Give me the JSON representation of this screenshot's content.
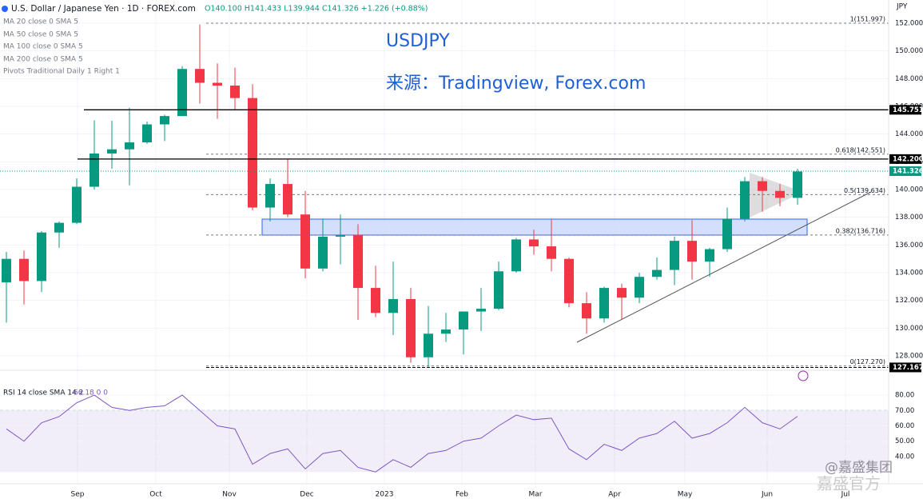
{
  "chart_data": {
    "type": "candlestick",
    "title": "U.S. Dollar / Japanese Yen · 1D · FOREX.com",
    "ohlc_readout": "O140.100 H141.433 L139.944 C141.326 +1.226 (+0.88%)",
    "indicators": [
      "MA 20 close 0 SMA 5",
      "MA 50 close 0 SMA 5",
      "MA 100 close 0 SMA 5",
      "MA 200 close 0 SMA 5",
      "Pivots Traditional Daily 1 Right 1"
    ],
    "annotations": [
      "USDJPY",
      "来源：Tradingview, Forex.com"
    ],
    "unit": "JPY",
    "up_color": "#089981",
    "down_color": "#f23645",
    "open": [
      133.3,
      135.0,
      133.4,
      136.9,
      137.6,
      140.2,
      142.6,
      142.9,
      143.4,
      144.7,
      145.3,
      148.7,
      147.7,
      147.5,
      146.6,
      138.7,
      140.4,
      138.2,
      134.3,
      136.6,
      136.7,
      132.9,
      131.1,
      132.1,
      127.9,
      129.6,
      129.9,
      131.2,
      131.4,
      134.1,
      136.4,
      135.9,
      135.0,
      131.8,
      130.7,
      132.9,
      132.2,
      133.7,
      134.2,
      136.3,
      134.8,
      135.7,
      137.9,
      140.6,
      139.9,
      139.4
    ],
    "high": [
      135.5,
      135.6,
      137.0,
      137.7,
      140.8,
      144.99,
      144.96,
      145.9,
      144.9,
      145.4,
      148.9,
      151.9,
      149.1,
      148.8,
      147.6,
      140.8,
      142.2,
      139.9,
      137.9,
      138.2,
      137.5,
      134.5,
      134.8,
      132.9,
      131.6,
      131.1,
      131.2,
      132.9,
      134.8,
      136.5,
      137.1,
      137.9,
      135.1,
      132.6,
      133.0,
      133.2,
      134.0,
      135.1,
      136.6,
      137.8,
      135.8,
      138.7,
      140.9,
      140.9,
      140.4,
      141.5
    ],
    "low": [
      130.4,
      131.7,
      132.6,
      135.8,
      137.5,
      140.0,
      141.5,
      140.3,
      143.3,
      143.5,
      145.3,
      146.2,
      145.1,
      145.7,
      138.5,
      137.7,
      138.0,
      133.6,
      134.1,
      134.6,
      130.6,
      130.8,
      129.5,
      127.5,
      127.2,
      129.0,
      128.1,
      129.8,
      131.3,
      134.0,
      135.3,
      134.1,
      131.5,
      129.6,
      130.4,
      130.6,
      131.8,
      133.5,
      133.1,
      133.5,
      133.7,
      135.5,
      137.7,
      138.4,
      138.8,
      138.9
    ],
    "close": [
      135.0,
      133.4,
      136.9,
      137.6,
      140.2,
      142.6,
      142.9,
      143.4,
      144.7,
      145.3,
      148.7,
      147.7,
      147.5,
      146.6,
      138.7,
      140.4,
      138.2,
      134.3,
      136.6,
      136.7,
      132.9,
      131.1,
      132.1,
      127.9,
      129.6,
      129.9,
      131.2,
      131.4,
      134.1,
      136.4,
      135.9,
      135.0,
      131.8,
      130.7,
      132.9,
      132.2,
      133.7,
      134.2,
      136.3,
      134.8,
      135.7,
      137.9,
      140.6,
      139.9,
      139.4,
      141.3
    ],
    "ylim": [
      127.02,
      153.673
    ],
    "yticks": [
      {
        "value": 128,
        "label": "128.000"
      },
      {
        "value": 130,
        "label": "130.000"
      },
      {
        "value": 132,
        "label": "132.000"
      },
      {
        "value": 134,
        "label": "134.000"
      },
      {
        "value": 136,
        "label": "136.000"
      },
      {
        "value": 138,
        "label": "138.000"
      },
      {
        "value": 140,
        "label": "140.000"
      },
      {
        "value": 142,
        "label": "142.000"
      },
      {
        "value": 144,
        "label": "144.000"
      },
      {
        "value": 146,
        "label": "146.000"
      },
      {
        "value": 148,
        "label": "148.000"
      },
      {
        "value": 150,
        "label": "150.000"
      },
      {
        "value": 152,
        "label": "152.000"
      }
    ],
    "levels": [
      145.751,
      {
        "value": 142.2,
        "label": "142.200"
      },
      141.326,
      127.167
    ],
    "fib_levels": [
      {
        "value": 151.997,
        "label": "1(151.997)"
      },
      {
        "value": 142.551,
        "label": "0.618(142.551)"
      },
      {
        "value": 139.634,
        "label": "0.5(139.634)"
      },
      {
        "value": 136.716,
        "label": "0.382(136.716)"
      },
      {
        "value": 127.27,
        "label": "0(127.270)"
      }
    ],
    "x_labels": [
      "Sep",
      "Oct",
      "Nov",
      "Dec",
      "2023",
      "Feb",
      "Mar",
      "Apr",
      "May",
      "Jun",
      "Jul"
    ],
    "rsi": {
      "label": "RSI 14 close SMA 14 2",
      "readout": "66.18 0 0",
      "color": "#7e57c2",
      "values": [
        58,
        50,
        62,
        66,
        75,
        80,
        72,
        70,
        72,
        73,
        80,
        70,
        60,
        58,
        35,
        42,
        45,
        32,
        42,
        44,
        33,
        30,
        38,
        33,
        42,
        44,
        50,
        52,
        60,
        67,
        64,
        65,
        45,
        38,
        48,
        44,
        52,
        55,
        63,
        52,
        55,
        62,
        72,
        62,
        58,
        66.18
      ],
      "ylim": [
        22.3,
        95.1
      ],
      "yticks": [
        {
          "value": 40,
          "label": "40.00"
        },
        {
          "value": 50,
          "label": "50.00"
        },
        {
          "value": 60,
          "label": "60.00"
        },
        {
          "value": 70,
          "label": "70.00"
        },
        {
          "value": 80,
          "label": "80.00"
        }
      ],
      "band": [
        30,
        70
      ]
    },
    "watermark": [
      "@嘉盛集团",
      "嘉盛官方"
    ]
  }
}
